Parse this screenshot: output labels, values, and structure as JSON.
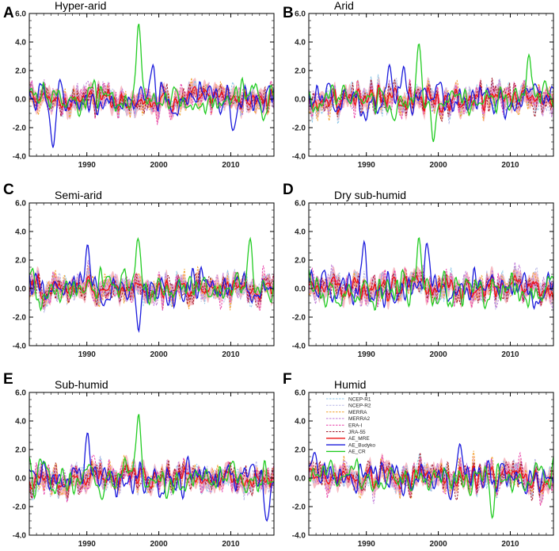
{
  "chart_data": {
    "type": "line",
    "xlabel": "",
    "ylabel": "",
    "xlim": [
      1982,
      2016
    ],
    "ylim": [
      -4.0,
      6.0
    ],
    "xticks": [
      1990,
      2000,
      2010
    ],
    "yticks": [
      "-4.0",
      "-2.0",
      "0.0",
      "2.0",
      "4.0",
      "6.0"
    ],
    "panels": [
      {
        "letter": "A",
        "title": "Hyper-arid"
      },
      {
        "letter": "B",
        "title": "Arid"
      },
      {
        "letter": "C",
        "title": "Semi-arid"
      },
      {
        "letter": "D",
        "title": "Dry sub-humid"
      },
      {
        "letter": "E",
        "title": "Sub-humid"
      },
      {
        "letter": "F",
        "title": "Humid"
      }
    ],
    "legend": {
      "panel": "F",
      "placement": "top-left",
      "entries": [
        "NCEP-R1",
        "NCEP-R2",
        "MERRA",
        "MERRA2",
        "ERA-I",
        "JRA-55",
        "AE_MRE",
        "AE_Budyko",
        "AE_CR"
      ]
    },
    "series_style": [
      {
        "name": "NCEP-R1",
        "color": "#8fc8e8",
        "dash": true
      },
      {
        "name": "NCEP-R2",
        "color": "#b8b8e6",
        "dash": true
      },
      {
        "name": "MERRA",
        "color": "#f3a22e",
        "dash": true
      },
      {
        "name": "MERRA2",
        "color": "#c07ad8",
        "dash": true
      },
      {
        "name": "ERA-I",
        "color": "#e83fa8",
        "dash": true
      },
      {
        "name": "JRA-55",
        "color": "#a01a2a",
        "dash": true
      },
      {
        "name": "AE_MRE",
        "color": "#ee1111",
        "dash": false
      },
      {
        "name": "AE_Budyko",
        "color": "#1a1adc",
        "dash": false
      },
      {
        "name": "AE_CR",
        "color": "#22cc22",
        "dash": false
      }
    ],
    "band_color": "#f4a6b0",
    "features": {
      "A": {
        "AE_Budyko": [
          [
            1985.3,
            -3.4
          ],
          [
            1999.2,
            2.4
          ],
          [
            2010.3,
            -2.2
          ]
        ],
        "AE_CR": [
          [
            1997.2,
            5.3
          ]
        ]
      },
      "B": {
        "AE_Budyko": [
          [
            1993.2,
            2.4
          ],
          [
            1995.2,
            2.3
          ]
        ],
        "AE_CR": [
          [
            1997.3,
            3.9
          ],
          [
            1999.3,
            -3.0
          ],
          [
            2012.6,
            3.1
          ]
        ]
      },
      "C": {
        "AE_Budyko": [
          [
            1990.1,
            3.1
          ],
          [
            1997.2,
            -3.0
          ]
        ],
        "AE_CR": [
          [
            1997.1,
            3.5
          ],
          [
            2012.7,
            3.5
          ]
        ]
      },
      "D": {
        "AE_Budyko": [
          [
            1989.7,
            3.3
          ],
          [
            1998.4,
            3.2
          ]
        ],
        "AE_CR": [
          [
            1997.3,
            3.6
          ]
        ]
      },
      "E": {
        "AE_Budyko": [
          [
            1990.1,
            3.2
          ],
          [
            2015.0,
            -3.0
          ]
        ],
        "AE_CR": [
          [
            1997.2,
            4.5
          ]
        ]
      },
      "F": {
        "AE_Budyko": [
          [
            1982.8,
            1.8
          ],
          [
            2003.0,
            2.4
          ]
        ],
        "AE_CR": [
          [
            2007.5,
            -2.8
          ]
        ]
      }
    }
  }
}
